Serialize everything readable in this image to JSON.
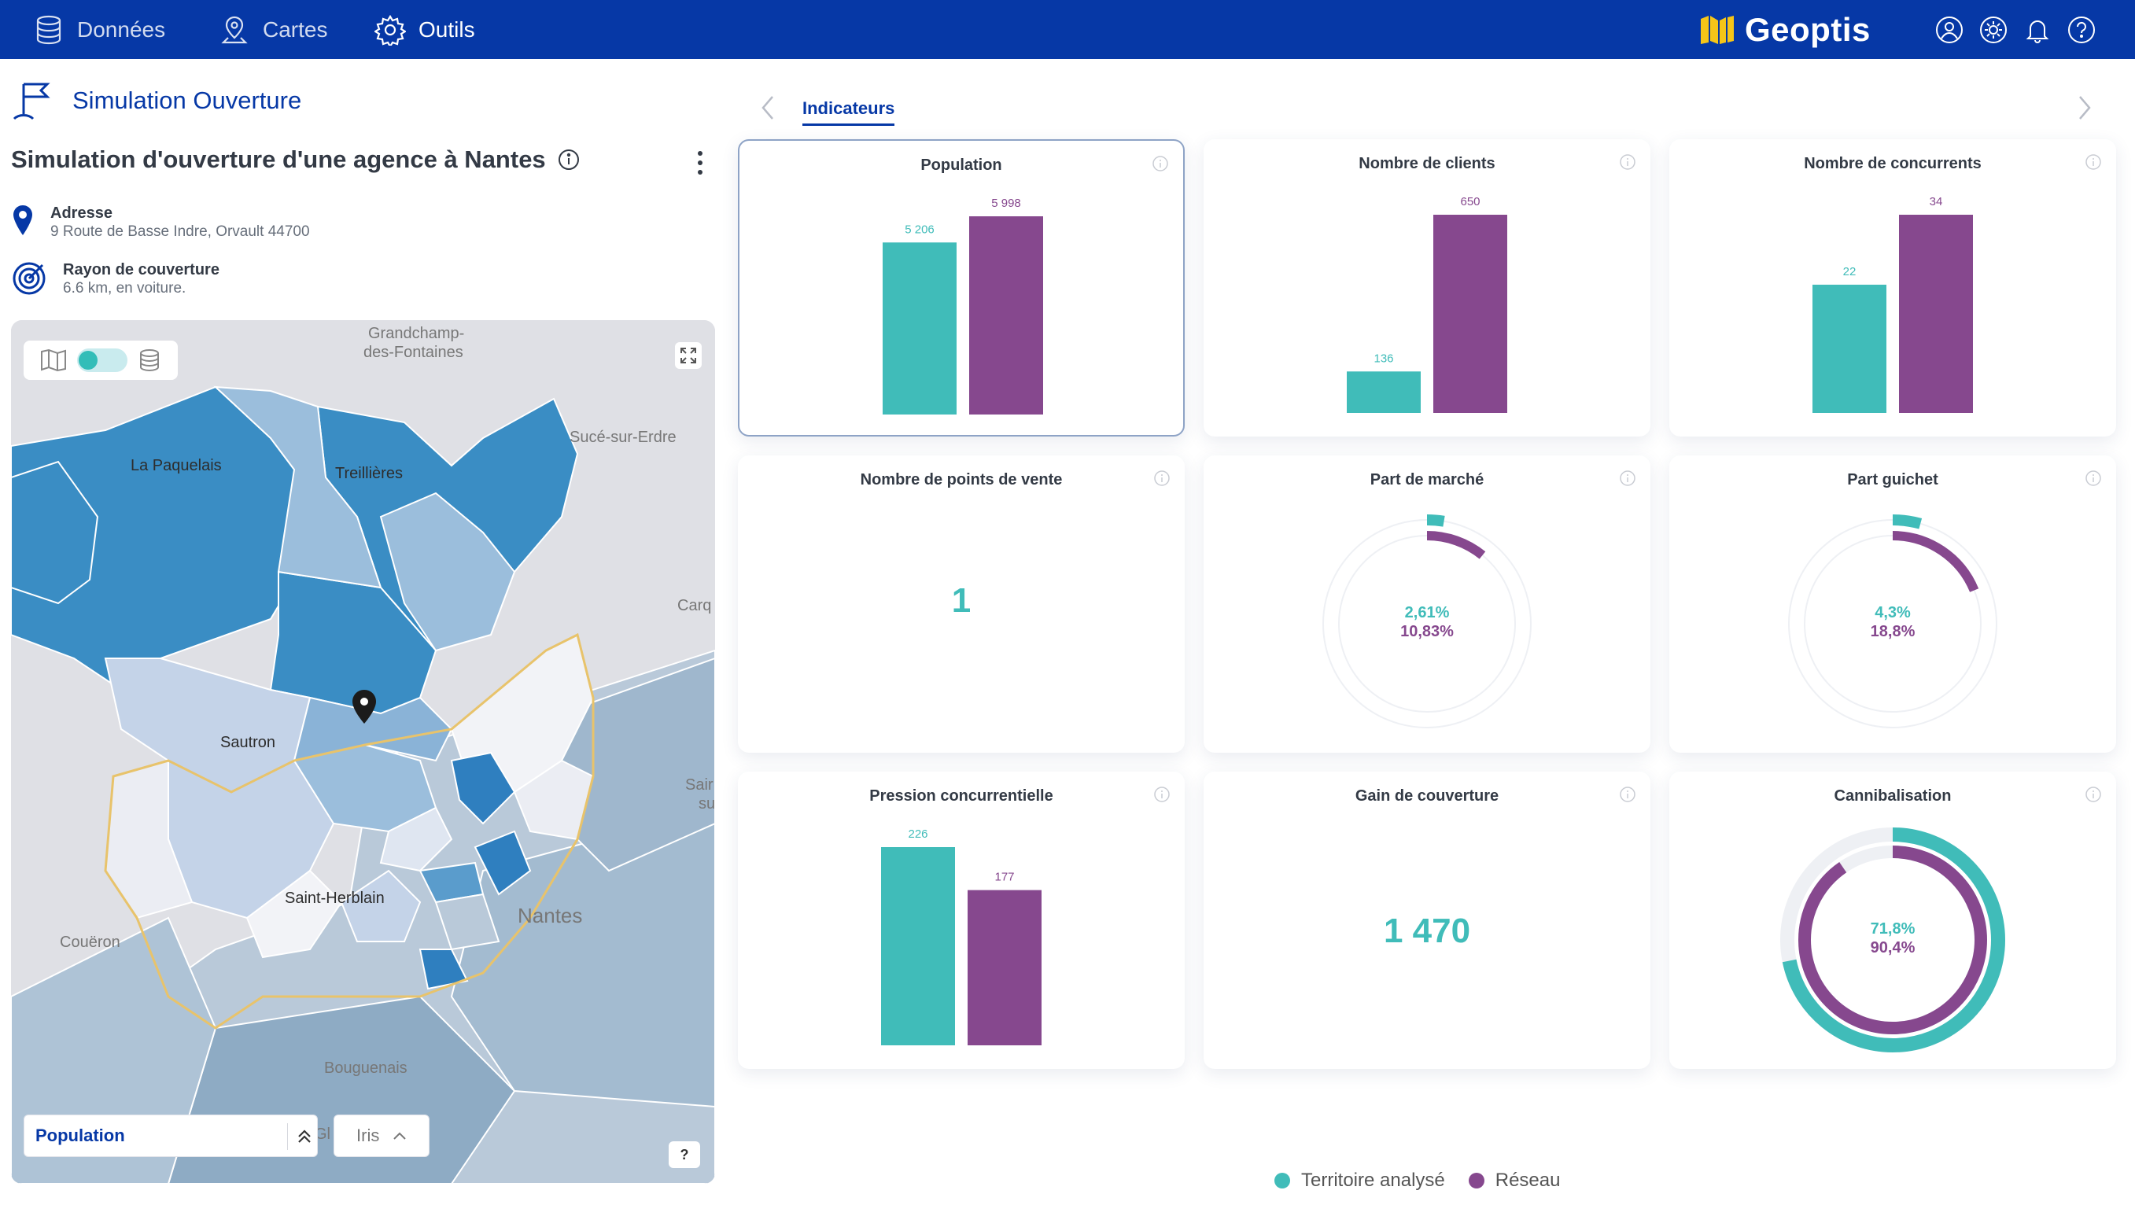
{
  "nav": {
    "items": [
      {
        "label": "Données",
        "icon": "database-icon"
      },
      {
        "label": "Cartes",
        "icon": "map-pin-icon"
      },
      {
        "label": "Outils",
        "icon": "gear-icon"
      }
    ],
    "brand": "Geoptis",
    "right_icons": [
      "user-icon",
      "settings-icon",
      "bell-icon",
      "help-icon"
    ]
  },
  "sidebar": {
    "app_title": "Simulation Ouverture",
    "heading": "Simulation d'ouverture d'une agence à Nantes",
    "address_label": "Adresse",
    "address_value": "9 Route de Basse Indre, Orvault 44700",
    "radius_label": "Rayon de couverture",
    "radius_value": "6.6 km, en voiture."
  },
  "map": {
    "labels": [
      "Grandchamp-",
      "des-Fontaines",
      "Sucé-sur-Erdre",
      "La Paquelais",
      "Treillières",
      "Carq",
      "Sautron",
      "Sair",
      "su",
      "Saint-Herblain",
      "Nantes",
      "Couëron",
      "Bouguenais",
      "Gl"
    ],
    "layer": "Population",
    "level": "Iris",
    "help": "?"
  },
  "tabs": {
    "active": "Indicateurs"
  },
  "cards": [
    {
      "title": "Population",
      "kind": "bar",
      "values": [
        5206,
        5998
      ],
      "labels": [
        "5 206",
        "5 998"
      ]
    },
    {
      "title": "Nombre de clients",
      "kind": "bar",
      "values": [
        136,
        650
      ],
      "labels": [
        "136",
        "650"
      ]
    },
    {
      "title": "Nombre de concurrents",
      "kind": "bar",
      "values": [
        22,
        34
      ],
      "labels": [
        "22",
        "34"
      ]
    },
    {
      "title": "Nombre de points de vente",
      "kind": "number",
      "value": "1"
    },
    {
      "title": "Part de marché",
      "kind": "donut",
      "values": [
        2.61,
        10.83
      ],
      "labels": [
        "2,61%",
        "10,83%"
      ]
    },
    {
      "title": "Part guichet",
      "kind": "donut",
      "values": [
        4.3,
        18.8
      ],
      "labels": [
        "4,3%",
        "18,8%"
      ]
    },
    {
      "title": "Pression concurrentielle",
      "kind": "bar",
      "values": [
        226,
        177
      ],
      "labels": [
        "226",
        "177"
      ]
    },
    {
      "title": "Gain de couverture",
      "kind": "number",
      "value": "1 470"
    },
    {
      "title": "Cannibalisation",
      "kind": "donut",
      "values": [
        71.8,
        90.4
      ],
      "labels": [
        "71,8%",
        "90,4%"
      ]
    }
  ],
  "legend": [
    {
      "label": "Territoire analysé",
      "color": "#40bcb9"
    },
    {
      "label": "Réseau",
      "color": "#86488e"
    }
  ],
  "colors": {
    "primary": "#0638a6",
    "teal": "#40bcb9",
    "purple": "#86488e"
  }
}
